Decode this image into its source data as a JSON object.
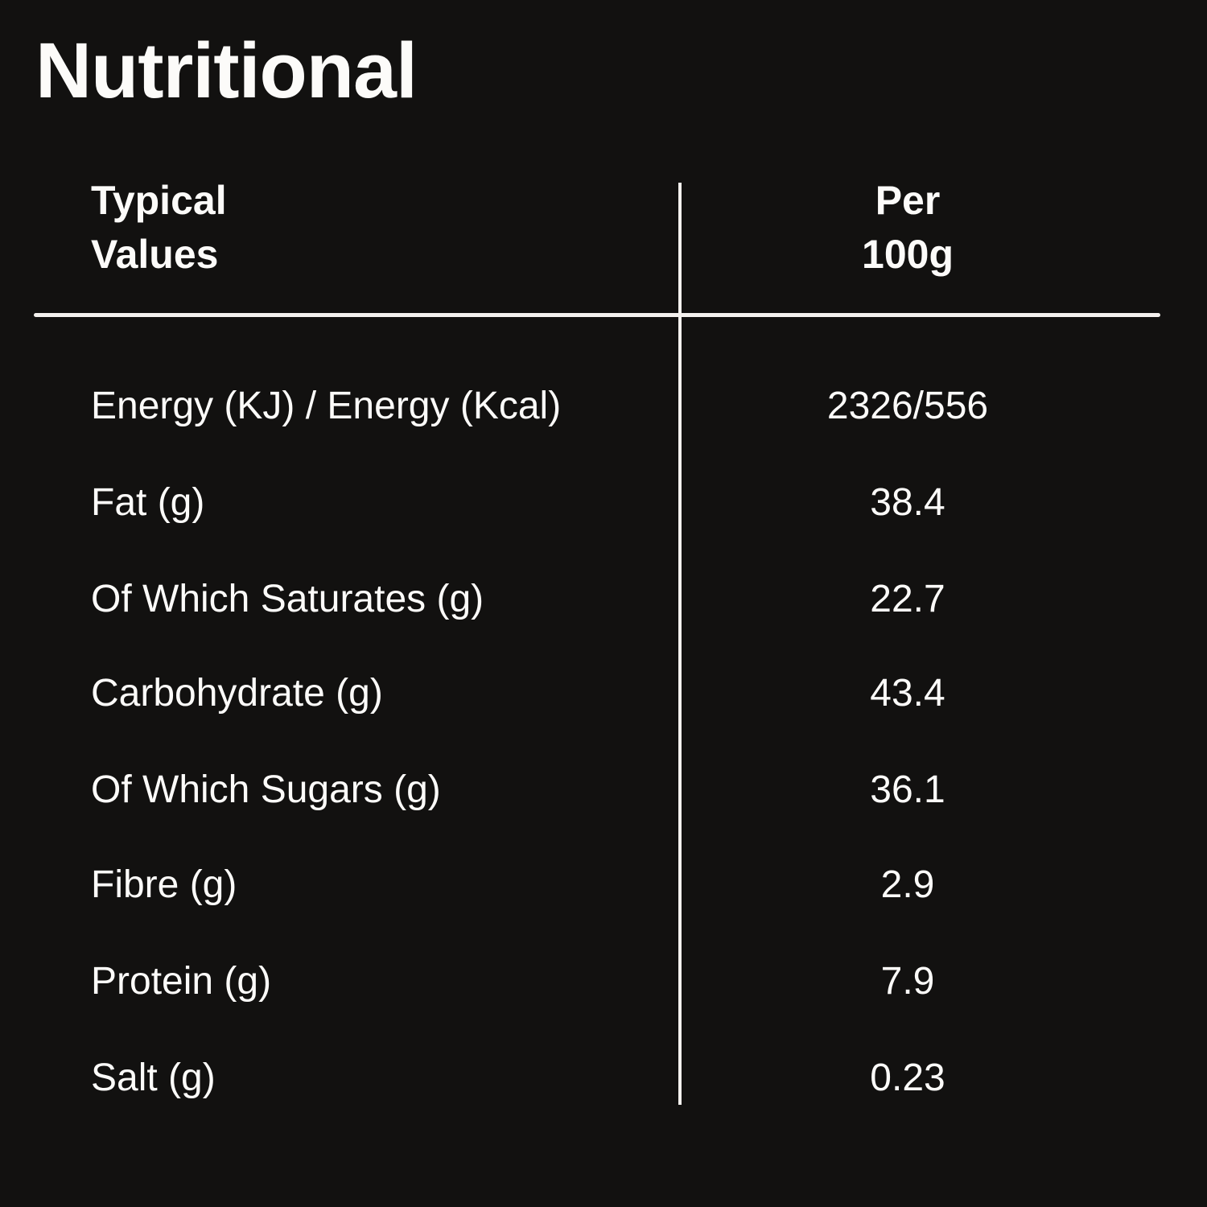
{
  "page": {
    "title": "Nutritional",
    "background_color": "#121110",
    "text_color": "#fcfbf9",
    "divider_color": "#f4f1ee"
  },
  "table": {
    "header": {
      "label_lines": [
        "Typical",
        "Values"
      ],
      "value_lines": [
        "Per",
        "100g"
      ]
    },
    "rows": [
      {
        "label": "Energy (KJ) / Energy (Kcal)",
        "value": "2326/556"
      },
      {
        "label": "Fat (g)",
        "value": "38.4"
      },
      {
        "label": "Of Which Saturates (g)",
        "value": "22.7"
      },
      {
        "label": "Carbohydrate (g)",
        "value": "43.4"
      },
      {
        "label": "Of Which Sugars (g)",
        "value": "36.1"
      },
      {
        "label": "Fibre (g)",
        "value": "2.9"
      },
      {
        "label": "Protein (g)",
        "value": "7.9"
      },
      {
        "label": "Salt (g)",
        "value": "0.23"
      }
    ]
  }
}
